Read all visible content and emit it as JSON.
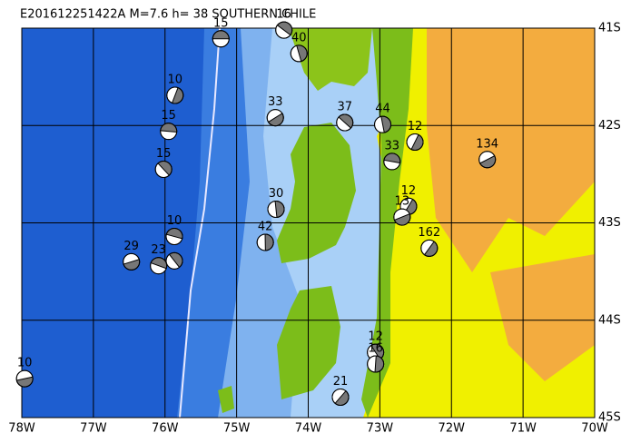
{
  "chart_data": {
    "type": "map",
    "title": "E201612251422A  M=7.6  h= 38  SOUTHERN CHILE",
    "xlim": [
      -78,
      -70
    ],
    "ylim": [
      -41,
      -45
    ],
    "xticks": [
      {
        "value": -78,
        "label": "78W"
      },
      {
        "value": -77,
        "label": "77W"
      },
      {
        "value": -76,
        "label": "76W"
      },
      {
        "value": -75,
        "label": "75W"
      },
      {
        "value": -74,
        "label": "74W"
      },
      {
        "value": -73,
        "label": "73W"
      },
      {
        "value": -72,
        "label": "72W"
      },
      {
        "value": -71,
        "label": "71W"
      },
      {
        "value": -70,
        "label": "70W"
      }
    ],
    "yticks": [
      {
        "value": -41,
        "label": "41S"
      },
      {
        "value": -42,
        "label": "42S"
      },
      {
        "value": -43,
        "label": "43S"
      },
      {
        "value": -44,
        "label": "44S"
      },
      {
        "value": -45,
        "label": "45S"
      }
    ],
    "events": [
      {
        "depth": 15,
        "lon": -75.22,
        "lat": -41.11
      },
      {
        "depth": 16,
        "lon": -74.34,
        "lat": -41.02
      },
      {
        "depth": 40,
        "lon": -74.13,
        "lat": -41.26
      },
      {
        "depth": 10,
        "lon": -75.86,
        "lat": -41.69
      },
      {
        "depth": 33,
        "lon": -74.46,
        "lat": -41.92
      },
      {
        "depth": 15,
        "lon": -75.95,
        "lat": -42.06
      },
      {
        "depth": 37,
        "lon": -73.49,
        "lat": -41.97
      },
      {
        "depth": 44,
        "lon": -72.96,
        "lat": -41.99
      },
      {
        "depth": 12,
        "lon": -72.51,
        "lat": -42.17
      },
      {
        "depth": 134,
        "lon": -71.5,
        "lat": -42.35
      },
      {
        "depth": 33,
        "lon": -72.83,
        "lat": -42.37
      },
      {
        "depth": 15,
        "lon": -76.02,
        "lat": -42.45
      },
      {
        "depth": 30,
        "lon": -74.45,
        "lat": -42.86
      },
      {
        "depth": 12,
        "lon": -72.6,
        "lat": -42.83
      },
      {
        "depth": 13,
        "lon": -72.69,
        "lat": -42.94
      },
      {
        "depth": 10,
        "lon": -75.87,
        "lat": -43.14
      },
      {
        "depth": null,
        "lon": -75.87,
        "lat": -43.39
      },
      {
        "depth": 42,
        "lon": -74.6,
        "lat": -43.2
      },
      {
        "depth": 162,
        "lon": -72.31,
        "lat": -43.26
      },
      {
        "depth": 29,
        "lon": -76.47,
        "lat": -43.4
      },
      {
        "depth": 23,
        "lon": -76.09,
        "lat": -43.44
      },
      {
        "depth": 12,
        "lon": -73.06,
        "lat": -44.33
      },
      {
        "depth": 16,
        "lon": -73.06,
        "lat": -44.45
      },
      {
        "depth": 21,
        "lon": -73.55,
        "lat": -44.79
      },
      {
        "depth": 10,
        "lon": -77.96,
        "lat": -44.6
      }
    ]
  }
}
